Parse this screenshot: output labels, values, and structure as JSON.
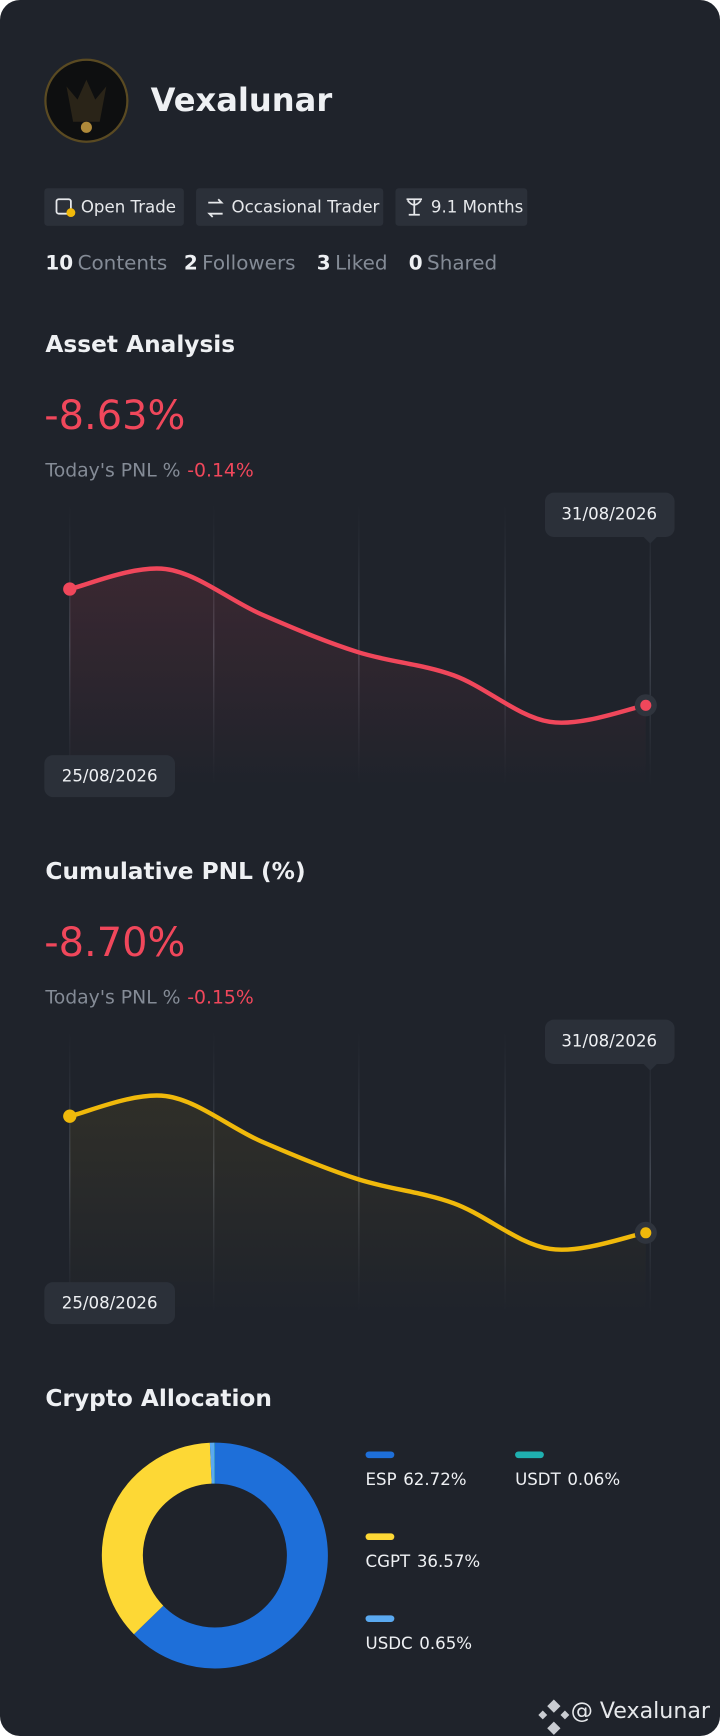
{
  "profile": {
    "name": "Vexalunar",
    "tags": [
      "Open Trade",
      "Occasional Trader",
      "9.1 Months"
    ],
    "stats": [
      {
        "count": 10,
        "label": "Contents"
      },
      {
        "count": 2,
        "label": "Followers"
      },
      {
        "count": 3,
        "label": "Liked"
      },
      {
        "count": 0,
        "label": "Shared"
      }
    ]
  },
  "chart_data": [
    {
      "type": "line",
      "title": "Asset Analysis",
      "headline": "-8.63%",
      "today_label": "Today's PNL %",
      "today_value": "-0.14%",
      "x": [
        "25/08/2026",
        null,
        null,
        null,
        null,
        null,
        "31/08/2026"
      ],
      "values": [
        0,
        1.48,
        -1.89,
        -4.68,
        -6.41,
        -9.86,
        -8.63
      ],
      "color": "#f0475b"
    },
    {
      "type": "line",
      "title": "Cumulative PNL (%)",
      "headline": "-8.70%",
      "today_label": "Today's PNL %",
      "today_value": "-0.15%",
      "x": [
        "25/08/2026",
        null,
        null,
        null,
        null,
        null,
        "31/08/2026"
      ],
      "values": [
        0,
        1.5,
        -1.9,
        -4.7,
        -6.5,
        -9.9,
        -8.7
      ],
      "color": "#f0b90b"
    },
    {
      "type": "pie",
      "title": "Crypto Allocation",
      "categories": [
        "ESP",
        "CGPT",
        "USDC",
        "USDT"
      ],
      "values": [
        62.72,
        36.57,
        0.65,
        0.06
      ],
      "value_labels": [
        "62.72%",
        "36.57%",
        "0.65%",
        "0.06%"
      ],
      "colors": [
        "#1e6fd9",
        "#fdd835",
        "#5aa9f0",
        "#1fb0b0"
      ]
    }
  ],
  "watermark": "@ Vexalunar"
}
